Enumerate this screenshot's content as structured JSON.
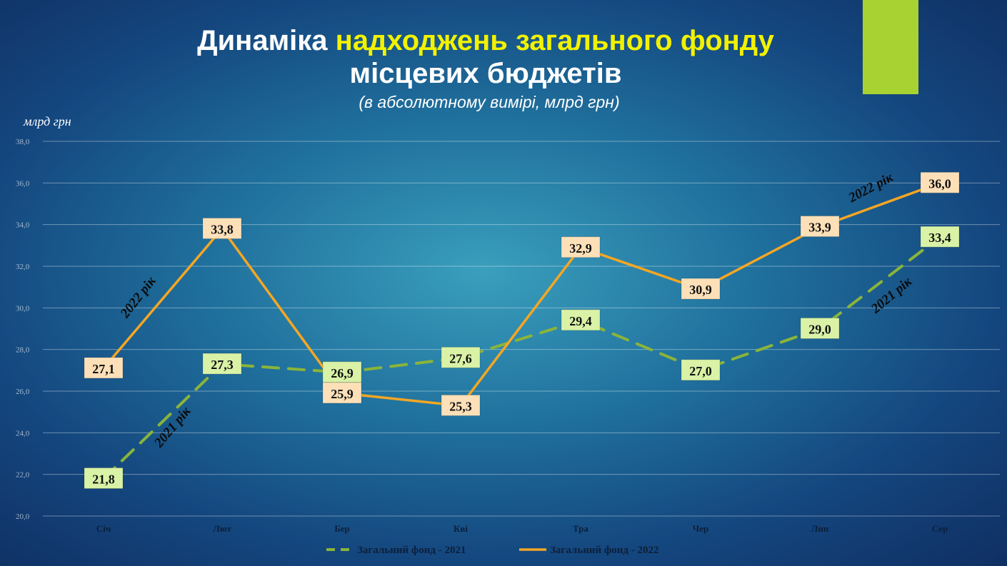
{
  "title": {
    "part1": "Динаміка ",
    "part2": "надходжень загального фонду",
    "line2": "місцевих бюджетів"
  },
  "subtitle": "(в абсолютному вимірі, млрд грн)",
  "unit_label": "млрд грн",
  "colors": {
    "series_2021": "#8ab43a",
    "series_2022": "#f5a623",
    "label_2021_bg": "#d9f2a6",
    "label_2022_bg": "#fde0b8",
    "accent": "#a8d232",
    "highlight": "#f2f200"
  },
  "chart_data": {
    "type": "line",
    "categories": [
      "Січ",
      "Лют",
      "Бер",
      "Кві",
      "Тра",
      "Чер",
      "Лип",
      "Сер"
    ],
    "ylim": [
      20,
      38
    ],
    "yticks": [
      "20,0",
      "22,0",
      "24,0",
      "26,0",
      "28,0",
      "30,0",
      "32,0",
      "34,0",
      "36,0",
      "38,0"
    ],
    "grid": true,
    "legend_position": "bottom",
    "series": [
      {
        "name": "Загальний фонд - 2021",
        "style": "dashed",
        "values": [
          21.8,
          27.3,
          26.9,
          27.6,
          29.4,
          27.0,
          29.0,
          33.4
        ],
        "labels": [
          "21,8",
          "27,3",
          "26,9",
          "27,6",
          "29,4",
          "27,0",
          "29,0",
          "33,4"
        ]
      },
      {
        "name": "Загальний фонд - 2022",
        "style": "solid",
        "values": [
          27.1,
          33.8,
          25.9,
          25.3,
          32.9,
          30.9,
          33.9,
          36.0
        ],
        "labels": [
          "27,1",
          "33,8",
          "25,9",
          "25,3",
          "32,9",
          "30,9",
          "33,9",
          "36,0"
        ]
      }
    ],
    "annotations": [
      {
        "text": "2022 рік",
        "series": 1
      },
      {
        "text": "2021 рік",
        "series": 0
      },
      {
        "text": "2022 рік",
        "series": 1
      },
      {
        "text": "2021 рік",
        "series": 0
      }
    ]
  }
}
